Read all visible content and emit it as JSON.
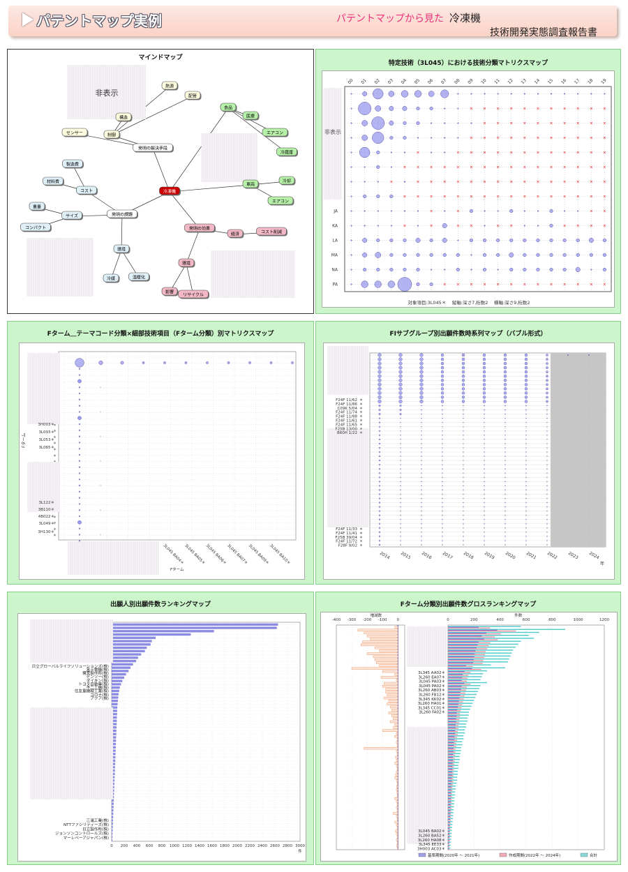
{
  "banner": {
    "title": "パテントマップ実例",
    "subtitle_pink": "パテントマップから見た",
    "subtitle_topic": "冷凍機",
    "subtitle_report": "技術開発実態調査報告書"
  },
  "colors": {
    "bubble": "#9999ee",
    "cross": "#ee2222",
    "bar_base": "#7777dd",
    "bar_work": "#ee8899",
    "bar_total": "#55cccc",
    "bar_diff": "#ee9966",
    "panel_bg": "#ccf5cc"
  },
  "mindmap": {
    "title": "マインドマップ",
    "hidden_label": "非表示",
    "nodes": [
      {
        "id": "center",
        "label": "冷凍機"
      },
      {
        "id": "solve",
        "label": "発明の解決手段"
      },
      {
        "id": "task",
        "label": "発明の課題"
      },
      {
        "id": "effect",
        "label": "発明の効果"
      },
      {
        "id": "ctrl",
        "label": "制御"
      },
      {
        "id": "struct",
        "label": "構造"
      },
      {
        "id": "sensor",
        "label": "センサー"
      },
      {
        "id": "heat",
        "label": "熱源"
      },
      {
        "id": "pipe",
        "label": "配管"
      },
      {
        "id": "mfg",
        "label": "製造費"
      },
      {
        "id": "material",
        "label": "材料費"
      },
      {
        "id": "cost",
        "label": "コスト"
      },
      {
        "id": "weight",
        "label": "重量"
      },
      {
        "id": "size",
        "label": "サイズ"
      },
      {
        "id": "compact",
        "label": "コンパクト"
      },
      {
        "id": "env",
        "label": "環境"
      },
      {
        "id": "refrig",
        "label": "冷媒"
      },
      {
        "id": "warm",
        "label": "温暖化"
      },
      {
        "id": "food",
        "label": "食品"
      },
      {
        "id": "medical",
        "label": "医療"
      },
      {
        "id": "aircon",
        "label": "エアコン"
      },
      {
        "id": "fridge",
        "label": "冷蔵庫"
      },
      {
        "id": "vehicle",
        "label": "車両"
      },
      {
        "id": "cool",
        "label": "冷却"
      },
      {
        "id": "aircon2",
        "label": "エアコン"
      },
      {
        "id": "econ",
        "label": "経済"
      },
      {
        "id": "costdown",
        "label": "コスト削減"
      },
      {
        "id": "envf",
        "label": "環境"
      },
      {
        "id": "ozone",
        "label": "影響"
      },
      {
        "id": "recycle",
        "label": "リサイクル"
      }
    ]
  },
  "matrix1": {
    "title": "特定技術（3L045）における技術分類マトリクスマップ",
    "hidden_label": "非表示",
    "footer": "対象項目:3L045＊　 縦軸:深さ7,桁数2　 横軸:深さ9,桁数2",
    "columns": [
      "00",
      "01",
      "02",
      "03",
      "04",
      "05",
      "06",
      "07",
      "08",
      "09",
      "10",
      "11",
      "12",
      "13",
      "14",
      "15",
      "16",
      "17",
      "18",
      "19"
    ],
    "row_labels": [
      "",
      "",
      "",
      "",
      "",
      "",
      "",
      "",
      "JA",
      "KA",
      "LA",
      "MA",
      "NA",
      "PA"
    ],
    "chart_data": {
      "type": "scatter",
      "kind": "bubble-matrix",
      "rows": [
        [
          0,
          2,
          7,
          3,
          4,
          4,
          3,
          5,
          0,
          0,
          0,
          0,
          0,
          0,
          0,
          0,
          0,
          0,
          0,
          0
        ],
        [
          0,
          9,
          3,
          2,
          2,
          1,
          1,
          0,
          0,
          -1,
          -1,
          -1,
          -1,
          -1,
          -1,
          -1,
          -1,
          -1,
          -1,
          -1
        ],
        [
          0,
          3,
          9,
          2,
          1,
          1,
          0,
          0,
          0,
          0,
          -1,
          -1,
          -1,
          -1,
          -1,
          -1,
          -1,
          -1,
          -1,
          -1
        ],
        [
          0,
          3,
          8,
          1,
          1,
          0,
          0,
          0,
          0,
          -1,
          -1,
          -1,
          -1,
          -1,
          -1,
          -1,
          -1,
          -1,
          -1,
          -1
        ],
        [
          0,
          7,
          1,
          0,
          0,
          -1,
          0,
          0,
          -1,
          -1,
          -1,
          -1,
          -1,
          -1,
          -1,
          -1,
          -1,
          -1,
          -1,
          -1
        ],
        [
          0,
          0,
          1,
          0,
          -1,
          -1,
          -1,
          -1,
          -1,
          -1,
          -1,
          -1,
          -1,
          -1,
          -1,
          -1,
          -1,
          -1,
          -1,
          -1
        ],
        [
          0,
          0,
          0,
          -1,
          0,
          -1,
          -1,
          -1,
          -1,
          -1,
          -1,
          -1,
          -1,
          -1,
          -1,
          -1,
          -1,
          -1,
          -1,
          -1
        ],
        [
          0,
          1,
          1,
          1,
          -1,
          -1,
          -1,
          -1,
          -1,
          -1,
          -1,
          -1,
          -1,
          -1,
          -1,
          -1,
          -1,
          -1,
          -1,
          -1
        ],
        [
          0,
          0,
          0,
          0,
          0,
          0,
          -1,
          0,
          -1,
          1,
          0,
          0,
          1,
          0,
          0,
          1,
          0,
          0,
          -1,
          -1
        ],
        [
          0,
          0,
          0,
          0,
          -1,
          0,
          -1,
          2,
          -1,
          -1,
          0,
          -1,
          -1,
          0,
          0,
          1,
          -1,
          -1,
          -1,
          -1
        ],
        [
          0,
          2,
          1,
          1,
          1,
          2,
          1,
          2,
          0,
          1,
          1,
          1,
          1,
          1,
          1,
          1,
          1,
          1,
          2,
          1
        ],
        [
          0,
          2,
          3,
          1,
          1,
          1,
          1,
          1,
          1,
          0,
          1,
          1,
          2,
          1,
          1,
          1,
          1,
          1,
          1,
          1
        ],
        [
          0,
          1,
          1,
          1,
          1,
          1,
          0,
          0,
          1,
          0,
          1,
          0,
          1,
          1,
          1,
          1,
          1,
          2,
          0,
          1
        ],
        [
          0,
          4,
          4,
          4,
          10,
          1,
          1,
          -1,
          -1,
          -1,
          -1,
          -1,
          -1,
          -1,
          -1,
          -1,
          -1,
          -1,
          -1,
          -1
        ]
      ]
    }
  },
  "matrix2": {
    "title": "Fターム＿テーマコード分類×細部技術項目（Fターム分類）別マトリクスマップ",
    "ylabel": "Fターム",
    "xlabel": "Fターム",
    "row_labels": [
      "3H003＊",
      "3L093＊",
      "3L053＊",
      "3L065＊",
      "",
      "",
      "",
      "",
      "",
      "",
      "3L122＊",
      "3B110＊",
      "4B022＊",
      "3L049＊",
      "3H130＊"
    ],
    "col_labels": [
      "3L045 BA04＊",
      "3L045 BA05＊",
      "3L045 BA06＊",
      "3L045 BA07＊",
      "3L045 BA09＊",
      "3L045 BA10＊"
    ],
    "chart_data": {
      "type": "scatter",
      "kind": "bubble-matrix",
      "top_row_sizes": [
        9,
        3,
        2,
        1,
        1,
        1,
        1,
        1,
        1,
        1,
        1,
        1
      ]
    }
  },
  "timeseries": {
    "title": "FIサブグループ別出願件数時系列マップ（バブル形式）",
    "row_labels_top": [
      "F24F 11/62",
      "F24F 11/86",
      "C09K 5/04",
      "F24F 11/74",
      "F24F 11/88",
      "F24F 11/61",
      "F24F 11/65",
      "F25B 13/00",
      "B60H 1/22"
    ],
    "row_labels_bottom": [
      "F24F 11/33",
      "F24F 11/41",
      "F25B 39/04",
      "F24F 11/72",
      "F28F 9/02"
    ],
    "xunit": "年",
    "chart_data": {
      "type": "scatter",
      "kind": "bubble-timeseries",
      "x": [
        "2014",
        "2015",
        "2016",
        "2017",
        "2018",
        "2019",
        "2020",
        "2021",
        "2022",
        "2023",
        "2024"
      ],
      "shaded_from": "2023"
    }
  },
  "ranking": {
    "title": "出願人別出願件数ランキングマップ",
    "labels_visible": [
      "日立グローバルライフソリューションズ(株)",
      "富士電機(株)",
      "鷺宮製作所(株)",
      "デンソー(株)",
      "ダイキン(株)",
      "トヨタ自動車(株)",
      "不二工機(株)",
      "住友重機械工業(株)",
      "コロナ(株)",
      "アクア(株)"
    ],
    "labels_bottom": [
      "三浦工業(株)",
      "NTTファシリティーズ(株)",
      "日立製作所(株)",
      "ジョンソンコントロールズ(株)",
      "マーレベーアジャパン(株)"
    ],
    "xunit": "件",
    "chart_data": {
      "type": "bar",
      "orientation": "horizontal",
      "xlim": [
        0,
        3000
      ],
      "xticks": [
        "0",
        "200",
        "400",
        "600",
        "800",
        "1000",
        "1200",
        "1400",
        "1600",
        "1800",
        "2000",
        "2200",
        "2400",
        "2600",
        "2800",
        "3000"
      ],
      "values": [
        2650,
        2630,
        1630,
        1260,
        700,
        640,
        620,
        560,
        530,
        470,
        420,
        390,
        340,
        300,
        270,
        230,
        200,
        170,
        150,
        130,
        120,
        110,
        105,
        100,
        95,
        90,
        88,
        86,
        84,
        82,
        80,
        78,
        76,
        74,
        72,
        70,
        68,
        66,
        64,
        62,
        60,
        58,
        56,
        54,
        52,
        50,
        48,
        46,
        44,
        42,
        40,
        38,
        36,
        34,
        32,
        30,
        28,
        26,
        24,
        22,
        20,
        18,
        16,
        14,
        12,
        10
      ]
    }
  },
  "growth": {
    "title": "Fターム分類別出願件数グロスランキングマップ",
    "left_label": "増減数",
    "right_label": "件数",
    "left_ticks": [
      "-400",
      "-300",
      "-200",
      "-100",
      "0"
    ],
    "right_ticks": [
      "0",
      "200",
      "400",
      "600",
      "800",
      "1000",
      "1200"
    ],
    "labels_mid": [
      "3L345 AA02＊",
      "3L260 EA07＊",
      "3L045 PA03＊",
      "3L045 PA02＊",
      "3L260 AB03＊",
      "3L260 FB12＊",
      "3L345 KK02＊",
      "3L260 HA01＊",
      "3L345 CC01＊",
      "3L260 FA02＊"
    ],
    "labels_bottom": [
      "3L045 BA02＊",
      "3L260 BA52＊",
      "3L260 HA08＊",
      "3L345 EE33＊",
      "3H003 AC03＊"
    ],
    "legend": [
      "基準期間(2020年 ～ 2021年)",
      "作成期間(2022年 ～ 2024年)",
      "合計"
    ],
    "chart_data": {
      "type": "bar",
      "orientation": "horizontal",
      "series": [
        {
          "name": "基準期間(2020年 ～ 2021年)"
        },
        {
          "name": "作成期間(2022年 ～ 2024年)"
        },
        {
          "name": "合計"
        }
      ],
      "totals": [
        560,
        900,
        700,
        620,
        660,
        560,
        540,
        520,
        500,
        490,
        480,
        470,
        460,
        330,
        440,
        300,
        270,
        260,
        250,
        300,
        250,
        240,
        230,
        220,
        210,
        200,
        190,
        180,
        170,
        160,
        160,
        150,
        150,
        140,
        140,
        130,
        130,
        120,
        120,
        110,
        110,
        100,
        100,
        95,
        90,
        90,
        85,
        80,
        80,
        75,
        75,
        70,
        70,
        65,
        60,
        60,
        55,
        55,
        50,
        50,
        48,
        46,
        44,
        42,
        40,
        38,
        36,
        34,
        32,
        30,
        28,
        26,
        24,
        22,
        20,
        18
      ],
      "diffs": [
        -20,
        -260,
        -220,
        -200,
        -180,
        -230,
        -240,
        -150,
        -120,
        -200,
        -160,
        -150,
        -140,
        -120,
        -300,
        -100,
        -20,
        -110,
        -10,
        -90,
        -100,
        -80,
        -80,
        -70,
        -90,
        -60,
        -70,
        -50,
        -40,
        -60,
        -40,
        -30,
        -50,
        -20,
        -30,
        -100,
        -10,
        -20,
        -5,
        -10,
        -5,
        -220,
        -10,
        -5,
        -15,
        -10,
        -20,
        -10,
        -5,
        -10,
        -15,
        -20,
        -10,
        -5,
        -8,
        -10,
        -6,
        -4,
        -20,
        -10,
        -5,
        -10,
        -5,
        -30,
        -10,
        -5,
        -20,
        -10,
        -5,
        -15,
        -10,
        -5,
        -10,
        -5,
        -8,
        -3
      ]
    }
  }
}
